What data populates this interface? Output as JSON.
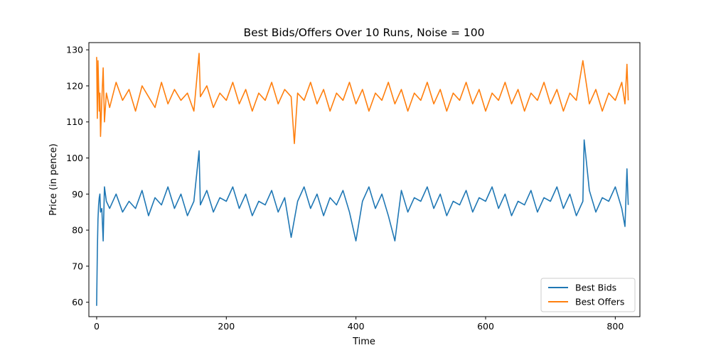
{
  "chart_data": {
    "type": "line",
    "title": "Best Bids/Offers Over 10 Runs, Noise = 100",
    "xlabel": "Time",
    "ylabel": "Price (in pence)",
    "xlim": [
      -12,
      838
    ],
    "ylim": [
      56,
      132
    ],
    "xticks": [
      0,
      200,
      400,
      600,
      800
    ],
    "yticks": [
      60,
      70,
      80,
      90,
      100,
      110,
      120,
      130
    ],
    "grid": false,
    "legend_position": "lower-right",
    "colors": {
      "bids": "#1f77b4",
      "offers": "#ff7f0e"
    },
    "series": [
      {
        "name": "Best Bids",
        "color": "#1f77b4",
        "x": [
          0,
          1,
          2,
          3,
          4,
          5,
          6,
          8,
          10,
          12,
          15,
          20,
          30,
          40,
          50,
          60,
          70,
          80,
          90,
          100,
          110,
          120,
          130,
          140,
          150,
          158,
          160,
          170,
          180,
          190,
          200,
          210,
          220,
          230,
          240,
          250,
          260,
          270,
          280,
          290,
          300,
          310,
          320,
          330,
          340,
          350,
          360,
          370,
          380,
          390,
          400,
          410,
          420,
          430,
          440,
          450,
          460,
          470,
          480,
          490,
          500,
          510,
          520,
          530,
          540,
          550,
          560,
          570,
          580,
          590,
          600,
          610,
          620,
          630,
          640,
          650,
          660,
          670,
          680,
          690,
          700,
          710,
          720,
          730,
          740,
          750,
          752,
          760,
          770,
          780,
          790,
          800,
          810,
          815,
          818,
          820
        ],
        "y": [
          59,
          74,
          83,
          87,
          89,
          90,
          85,
          86,
          77,
          92,
          88,
          86,
          90,
          85,
          88,
          86,
          91,
          84,
          89,
          87,
          92,
          86,
          90,
          84,
          88,
          102,
          87,
          91,
          85,
          89,
          88,
          92,
          86,
          90,
          84,
          88,
          87,
          91,
          85,
          89,
          78,
          88,
          92,
          86,
          90,
          84,
          89,
          87,
          91,
          85,
          77,
          88,
          92,
          86,
          90,
          84,
          77,
          91,
          85,
          89,
          88,
          92,
          86,
          90,
          84,
          88,
          87,
          91,
          85,
          89,
          88,
          92,
          86,
          90,
          84,
          88,
          87,
          91,
          85,
          89,
          88,
          92,
          86,
          90,
          84,
          88,
          105,
          91,
          85,
          89,
          88,
          92,
          86,
          81,
          97,
          87
        ]
      },
      {
        "name": "Best Offers",
        "color": "#ff7f0e",
        "x": [
          0,
          1,
          2,
          3,
          4,
          5,
          6,
          8,
          10,
          12,
          15,
          20,
          30,
          40,
          50,
          60,
          70,
          80,
          90,
          100,
          110,
          120,
          130,
          140,
          150,
          158,
          160,
          170,
          180,
          190,
          200,
          210,
          220,
          230,
          240,
          250,
          260,
          270,
          280,
          290,
          300,
          305,
          310,
          320,
          330,
          340,
          350,
          360,
          370,
          380,
          390,
          400,
          410,
          420,
          430,
          440,
          450,
          460,
          470,
          480,
          490,
          500,
          510,
          520,
          530,
          540,
          550,
          560,
          570,
          580,
          590,
          600,
          610,
          620,
          630,
          640,
          650,
          660,
          670,
          680,
          690,
          700,
          710,
          720,
          730,
          740,
          750,
          760,
          770,
          780,
          790,
          800,
          810,
          815,
          818,
          820
        ],
        "y": [
          128,
          111,
          127,
          120,
          113,
          118,
          106,
          116,
          125,
          110,
          118,
          114,
          121,
          116,
          119,
          113,
          120,
          117,
          114,
          121,
          115,
          119,
          116,
          118,
          113,
          129,
          117,
          120,
          114,
          118,
          116,
          121,
          115,
          119,
          113,
          118,
          116,
          121,
          115,
          119,
          117,
          104,
          118,
          116,
          121,
          115,
          119,
          113,
          118,
          116,
          121,
          115,
          119,
          113,
          118,
          116,
          121,
          115,
          119,
          113,
          118,
          116,
          121,
          115,
          119,
          113,
          118,
          116,
          121,
          115,
          119,
          113,
          118,
          116,
          121,
          115,
          119,
          113,
          118,
          116,
          121,
          115,
          119,
          113,
          118,
          116,
          127,
          115,
          119,
          113,
          118,
          116,
          121,
          115,
          126,
          116
        ]
      }
    ]
  }
}
